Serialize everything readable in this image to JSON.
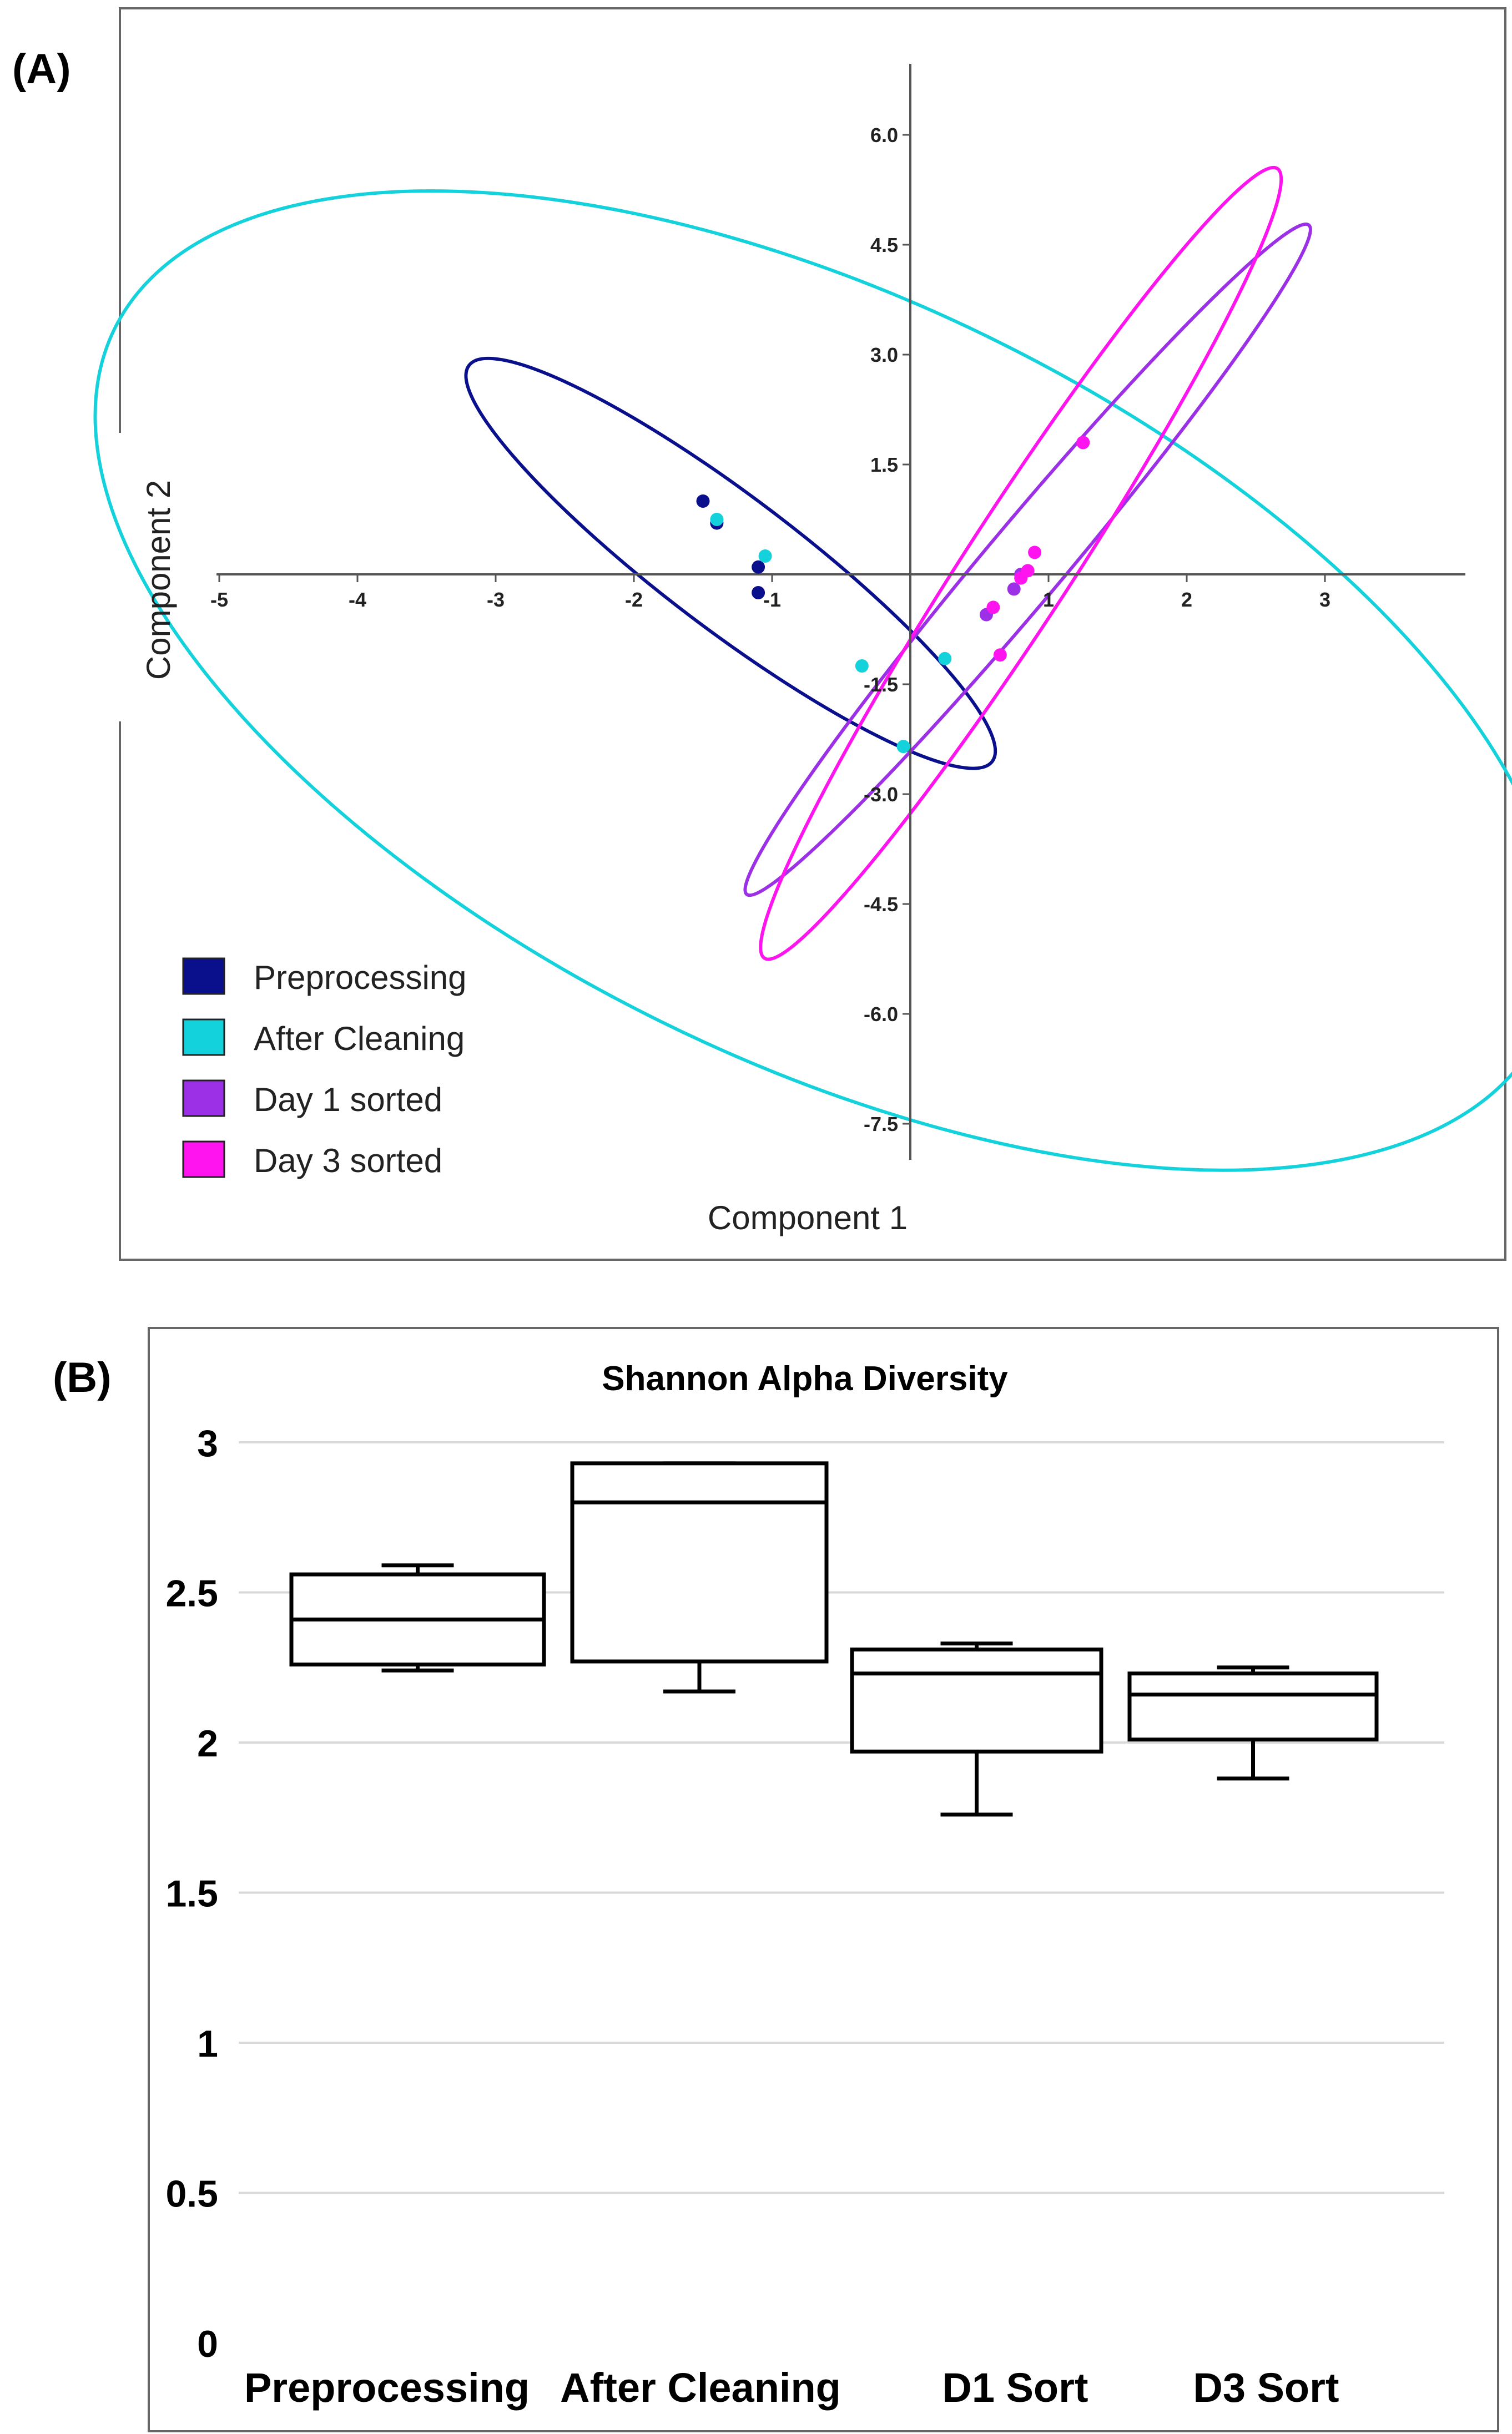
{
  "panel_a": {
    "label": "(A)",
    "xlabel": "Component 1",
    "ylabel": "Component 2",
    "x_ticks": [
      "-5",
      "-4",
      "-3",
      "-2",
      "-1",
      "1",
      "2",
      "3"
    ],
    "y_ticks": [
      "6.0",
      "4.5",
      "3.0",
      "1.5",
      "-1.5",
      "-3.0",
      "-4.5",
      "-6.0",
      "-7.5"
    ],
    "legend": [
      {
        "label": "Preprocessing",
        "color": "#0a0f8c"
      },
      {
        "label": "After Cleaning",
        "color": "#14d2dc"
      },
      {
        "label": "Day 1 sorted",
        "color": "#9b30e6"
      },
      {
        "label": "Day 3 sorted",
        "color": "#ff14f0"
      }
    ]
  },
  "panel_b": {
    "label": "(B)",
    "title": "Shannon Alpha Diversity",
    "y_ticks": [
      "0",
      "0.5",
      "1",
      "1.5",
      "2",
      "2.5",
      "3"
    ],
    "categories": [
      "Preprocessing",
      "After Cleaning",
      "D1 Sort",
      "D3 Sort"
    ]
  },
  "chart_data": [
    {
      "type": "scatter",
      "title": "",
      "xlabel": "Component 1",
      "ylabel": "Component 2",
      "xlim": [
        -5,
        4
      ],
      "ylim": [
        -8,
        7
      ],
      "series": [
        {
          "name": "Preprocessing",
          "color": "#0a0f8c",
          "points": [
            [
              -1.5,
              1.0
            ],
            [
              -1.4,
              0.7
            ],
            [
              -1.1,
              0.1
            ],
            [
              -1.1,
              -0.25
            ]
          ],
          "ellipse": {
            "cx": -1.3,
            "cy": 0.15,
            "rx": 3.3,
            "ry": 0.55,
            "angle_deg": -55
          }
        },
        {
          "name": "After Cleaning",
          "color": "#14d2dc",
          "points": [
            [
              -1.4,
              0.75
            ],
            [
              -1.05,
              0.25
            ],
            [
              -0.35,
              -1.25
            ],
            [
              -0.05,
              -2.35
            ],
            [
              0.25,
              -1.15
            ]
          ],
          "ellipse": {
            "cx": -0.6,
            "cy": -1.45,
            "rx": 7.05,
            "ry": 3.5,
            "angle_deg": -43
          }
        },
        {
          "name": "Day 1 sorted",
          "color": "#9b30e6",
          "points": [
            [
              0.55,
              -0.55
            ],
            [
              0.75,
              -0.2
            ],
            [
              0.8,
              0.0
            ],
            [
              1.25,
              1.8
            ]
          ],
          "ellipse": {
            "cx": 0.85,
            "cy": 0.2,
            "rx": 5.0,
            "ry": 0.3,
            "angle_deg": 66
          }
        },
        {
          "name": "Day 3 sorted",
          "color": "#ff14f0",
          "points": [
            [
              0.6,
              -0.45
            ],
            [
              0.65,
              -1.1
            ],
            [
              0.8,
              -0.05
            ],
            [
              0.85,
              0.05
            ],
            [
              0.9,
              0.3
            ],
            [
              1.25,
              1.8
            ]
          ],
          "ellipse": {
            "cx": 0.8,
            "cy": 0.15,
            "rx": 5.7,
            "ry": 0.4,
            "angle_deg": 71
          }
        }
      ]
    },
    {
      "type": "box",
      "title": "Shannon Alpha Diversity",
      "xlabel": "",
      "ylabel": "",
      "ylim": [
        0,
        3
      ],
      "categories": [
        "Preprocessing",
        "After Cleaning",
        "D1 Sort",
        "D3 Sort"
      ],
      "boxes": [
        {
          "min": 2.24,
          "q1": 2.26,
          "median": 2.41,
          "q3": 2.56,
          "max": 2.59
        },
        {
          "min": 2.17,
          "q1": 2.27,
          "median": 2.8,
          "q3": 2.93,
          "max": 2.93
        },
        {
          "min": 1.76,
          "q1": 1.97,
          "median": 2.23,
          "q3": 2.31,
          "max": 2.33
        },
        {
          "min": 1.88,
          "q1": 2.01,
          "median": 2.16,
          "q3": 2.23,
          "max": 2.25
        }
      ]
    }
  ]
}
